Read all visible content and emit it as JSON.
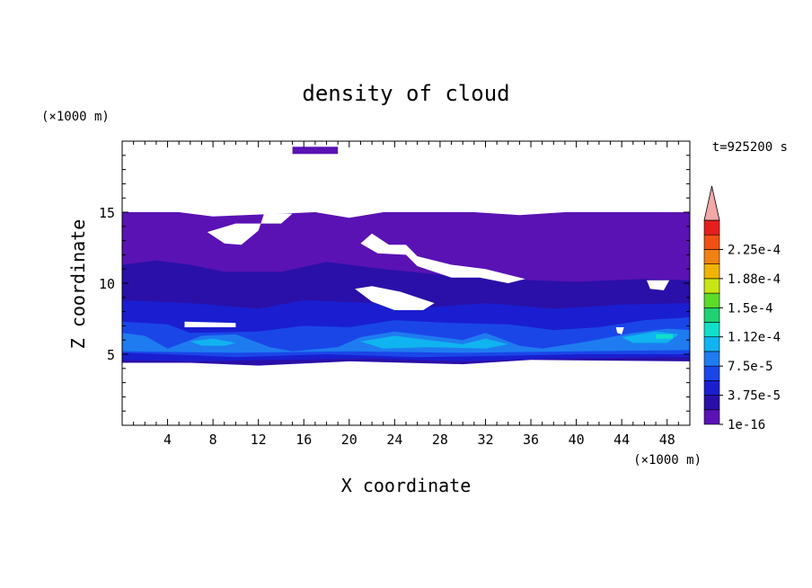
{
  "chart_data": {
    "type": "heatmap",
    "title": "density of cloud",
    "time_label": "t=925200 s",
    "xlabel": "X coordinate",
    "ylabel": "Z coordinate",
    "x_unit": "(×1000 m)",
    "y_unit": "(×1000 m)",
    "xlim": [
      0,
      50
    ],
    "ylim": [
      0,
      20
    ],
    "x_ticks": [
      4,
      8,
      12,
      16,
      20,
      24,
      28,
      32,
      36,
      40,
      44,
      48
    ],
    "y_ticks": [
      5,
      10,
      15
    ],
    "grid": false,
    "colorbar": {
      "placement": "right",
      "levels": [
        {
          "value": 1e-16,
          "color": "#5a12b4"
        },
        {
          "value": 1.875e-05,
          "color": "#2a10a8"
        },
        {
          "value": 3.75e-05,
          "color": "#1a1ed0"
        },
        {
          "value": 5.625e-05,
          "color": "#1a46e8"
        },
        {
          "value": 7.5e-05,
          "color": "#1e7cf0"
        },
        {
          "value": 9.375e-05,
          "color": "#10b4f0"
        },
        {
          "value": 0.0001125,
          "color": "#10e0c8"
        },
        {
          "value": 0.00013125,
          "color": "#1ed272"
        },
        {
          "value": 0.00015,
          "color": "#5adc28"
        },
        {
          "value": 0.00016875,
          "color": "#c8e614"
        },
        {
          "value": 0.0001875,
          "color": "#f0b400"
        },
        {
          "value": 0.00020625,
          "color": "#f08214"
        },
        {
          "value": 0.000225,
          "color": "#f05014"
        },
        {
          "value": 0.00024375,
          "color": "#e61e1e"
        }
      ],
      "overflow_color": "#f4a8a8",
      "tick_labels": [
        "1e-16",
        "3.75e-5",
        "7.5e-5",
        "1.12e-4",
        "1.5e-4",
        "1.88e-4",
        "2.25e-4"
      ]
    },
    "regions": [
      {
        "name": "top-cloud-patch",
        "level": 0,
        "poly": [
          [
            15,
            19.6
          ],
          [
            19,
            19.6
          ],
          [
            19,
            19.1
          ],
          [
            15,
            19.1
          ]
        ]
      },
      {
        "name": "upper-cloud-layer",
        "level": 0,
        "poly": [
          [
            0,
            15
          ],
          [
            5,
            15
          ],
          [
            8,
            14.7
          ],
          [
            14,
            14.9
          ],
          [
            17,
            15
          ],
          [
            20,
            14.6
          ],
          [
            23,
            15
          ],
          [
            31,
            15
          ],
          [
            35,
            14.8
          ],
          [
            39,
            15
          ],
          [
            50,
            15
          ],
          [
            50,
            9.5
          ],
          [
            44,
            9.3
          ],
          [
            38,
            9.5
          ],
          [
            30,
            9.7
          ],
          [
            25,
            10
          ],
          [
            20,
            9.5
          ],
          [
            12,
            9.4
          ],
          [
            6,
            9.4
          ],
          [
            0,
            9.6
          ]
        ]
      },
      {
        "name": "mid-cloud-layer",
        "level": 1,
        "poly": [
          [
            0,
            11.3
          ],
          [
            3,
            11.6
          ],
          [
            6,
            11.3
          ],
          [
            9,
            10.8
          ],
          [
            14,
            10.8
          ],
          [
            18,
            11.5
          ],
          [
            23,
            11
          ],
          [
            28,
            10.6
          ],
          [
            33,
            10.3
          ],
          [
            40,
            10.1
          ],
          [
            46,
            10.3
          ],
          [
            50,
            10.2
          ],
          [
            50,
            4.5
          ],
          [
            36,
            4.6
          ],
          [
            30,
            4.3
          ],
          [
            20,
            4.5
          ],
          [
            12,
            4.2
          ],
          [
            6,
            4.4
          ],
          [
            0,
            4.4
          ]
        ]
      },
      {
        "name": "mid-cloud-dense",
        "level": 2,
        "poly": [
          [
            0,
            8.8
          ],
          [
            6,
            8.6
          ],
          [
            12,
            8.2
          ],
          [
            16,
            8.8
          ],
          [
            22,
            8.6
          ],
          [
            27,
            8.3
          ],
          [
            32,
            8.6
          ],
          [
            38,
            8.2
          ],
          [
            44,
            8.5
          ],
          [
            50,
            8.6
          ],
          [
            50,
            4.8
          ],
          [
            38,
            4.7
          ],
          [
            30,
            4.5
          ],
          [
            22,
            4.7
          ],
          [
            14,
            4.6
          ],
          [
            6,
            4.5
          ],
          [
            0,
            4.6
          ]
        ]
      },
      {
        "name": "lower-cloud-band",
        "level": 3,
        "poly": [
          [
            0,
            7.3
          ],
          [
            4,
            7.1
          ],
          [
            6,
            6.5
          ],
          [
            12,
            6.6
          ],
          [
            16,
            7
          ],
          [
            20,
            6.9
          ],
          [
            24,
            7.4
          ],
          [
            29,
            7.2
          ],
          [
            34,
            7.1
          ],
          [
            38,
            6.7
          ],
          [
            42,
            6.9
          ],
          [
            46,
            7.4
          ],
          [
            50,
            7.6
          ],
          [
            50,
            5
          ],
          [
            40,
            5
          ],
          [
            34,
            4.9
          ],
          [
            26,
            4.8
          ],
          [
            18,
            5
          ],
          [
            10,
            4.8
          ],
          [
            4,
            5
          ],
          [
            0,
            5.1
          ]
        ]
      },
      {
        "name": "lower-cloud-core",
        "level": 4,
        "poly": [
          [
            0,
            6.5
          ],
          [
            2,
            6.3
          ],
          [
            4,
            5.4
          ],
          [
            7,
            6.3
          ],
          [
            10,
            6.4
          ],
          [
            13,
            5.5
          ],
          [
            15,
            5.2
          ],
          [
            19,
            5.5
          ],
          [
            21,
            6.2
          ],
          [
            24,
            6.6
          ],
          [
            27,
            6.3
          ],
          [
            30,
            6
          ],
          [
            32,
            6.5
          ],
          [
            35,
            5.6
          ],
          [
            37,
            5.4
          ],
          [
            41,
            5.9
          ],
          [
            45,
            6.5
          ],
          [
            48,
            6.8
          ],
          [
            50,
            6.7
          ],
          [
            50,
            5.3
          ],
          [
            40,
            5.2
          ],
          [
            30,
            5.1
          ],
          [
            20,
            5.2
          ],
          [
            10,
            5.1
          ],
          [
            0,
            5.2
          ]
        ]
      },
      {
        "name": "lower-cloud-peak",
        "level": 5,
        "poly": [
          [
            6,
            5.9
          ],
          [
            8,
            6.1
          ],
          [
            10,
            5.8
          ],
          [
            9,
            5.6
          ],
          [
            7,
            5.6
          ]
        ]
      },
      {
        "name": "lower-cloud-peak",
        "level": 5,
        "poly": [
          [
            21,
            5.9
          ],
          [
            24,
            6.3
          ],
          [
            27,
            6
          ],
          [
            30,
            5.7
          ],
          [
            32,
            6.1
          ],
          [
            34,
            5.7
          ],
          [
            32,
            5.4
          ],
          [
            27,
            5.5
          ],
          [
            23,
            5.4
          ]
        ]
      },
      {
        "name": "lower-cloud-peak",
        "level": 5,
        "poly": [
          [
            44,
            6.2
          ],
          [
            47,
            6.6
          ],
          [
            49,
            6.4
          ],
          [
            48,
            5.8
          ],
          [
            45,
            5.8
          ]
        ]
      },
      {
        "name": "lower-cloud-peak-core",
        "level": 6,
        "poly": [
          [
            47,
            6.4
          ],
          [
            48.5,
            6.4
          ],
          [
            48.5,
            6.1
          ],
          [
            47,
            6.1
          ]
        ]
      }
    ],
    "clear_gaps": [
      {
        "name": "clear-gap",
        "poly": [
          [
            7.5,
            13.6
          ],
          [
            10,
            14.2
          ],
          [
            14,
            14.2
          ],
          [
            15,
            14.9
          ],
          [
            12.5,
            14.9
          ],
          [
            12,
            13.7
          ],
          [
            10.5,
            12.7
          ],
          [
            9,
            12.8
          ]
        ]
      },
      {
        "name": "clear-gap",
        "poly": [
          [
            21,
            12.8
          ],
          [
            22,
            13.5
          ],
          [
            23.5,
            12.7
          ],
          [
            25,
            12.7
          ],
          [
            26,
            11.9
          ],
          [
            29,
            11.3
          ],
          [
            32,
            11
          ],
          [
            35.5,
            10.3
          ],
          [
            34,
            10
          ],
          [
            31.5,
            10.4
          ],
          [
            29,
            10.4
          ],
          [
            27.5,
            10.8
          ],
          [
            26,
            11.2
          ],
          [
            25,
            12
          ],
          [
            22.5,
            12.1
          ]
        ]
      },
      {
        "name": "clear-gap",
        "poly": [
          [
            20.5,
            9.6
          ],
          [
            22,
            9.8
          ],
          [
            24.5,
            9.4
          ],
          [
            27.5,
            8.6
          ],
          [
            26.5,
            8.1
          ],
          [
            24,
            8.1
          ],
          [
            22,
            8.7
          ]
        ]
      },
      {
        "name": "clear-gap",
        "poly": [
          [
            46.2,
            10.2
          ],
          [
            48.2,
            10.2
          ],
          [
            47.7,
            9.5
          ],
          [
            46.5,
            9.6
          ]
        ]
      },
      {
        "name": "clear-gap",
        "poly": [
          [
            5.5,
            7.3
          ],
          [
            10,
            7.2
          ],
          [
            10,
            6.9
          ],
          [
            5.5,
            6.9
          ]
        ]
      },
      {
        "name": "clear-gap",
        "poly": [
          [
            43.5,
            6.9
          ],
          [
            44.2,
            6.9
          ],
          [
            44,
            6.4
          ],
          [
            43.6,
            6.5
          ]
        ]
      }
    ]
  }
}
